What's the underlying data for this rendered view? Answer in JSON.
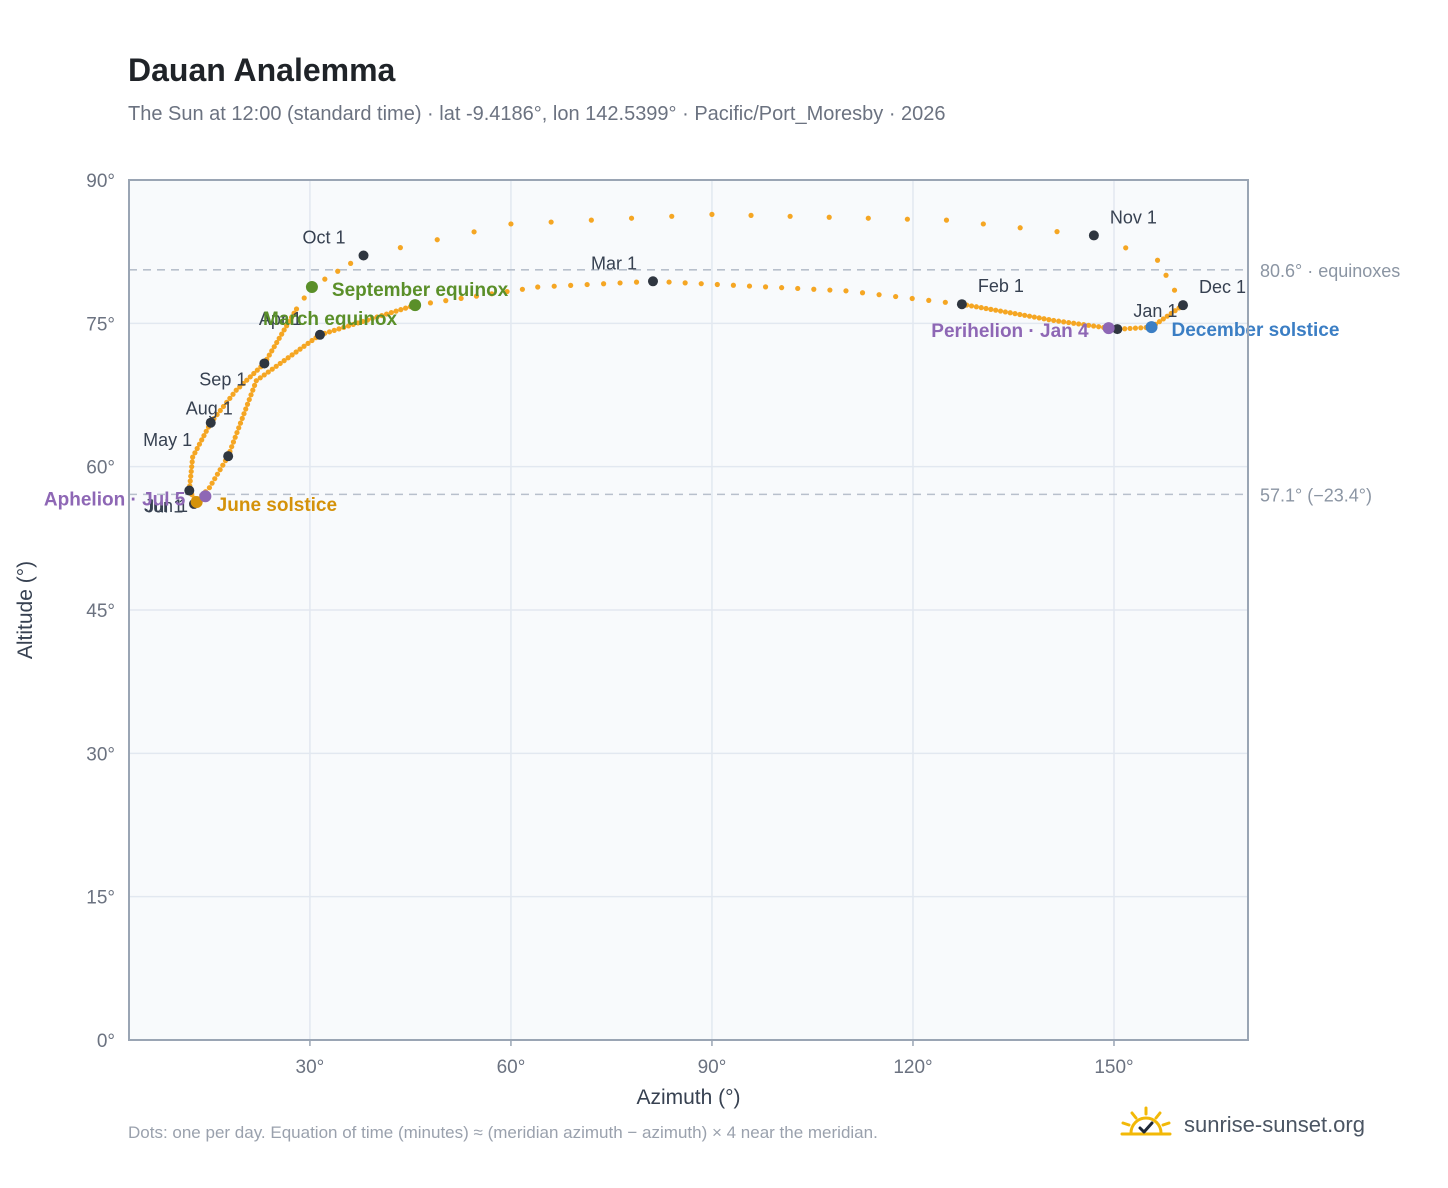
{
  "title": "Dauan Analemma",
  "subtitle": "The Sun at 12:00 (standard time) · lat -9.4186°, lon 142.5399° · Pacific/Port_Moresby · 2026",
  "footer_note": "Dots: one per day. Equation of time (minutes) ≈ (meridian azimuth − azimuth) × 4 near the meridian.",
  "brand": {
    "name": "sunrise-sunset.org",
    "icon": "sun-check-icon"
  },
  "colors": {
    "curve": "#f5a623",
    "month_marker": "#2f3640",
    "equinox": "#5a8f29",
    "june_solstice": "#d4920a",
    "december_solstice": "#3b7ec4",
    "aphelion_perihelion": "#8e67b5",
    "reference_line": "#b8c0cc",
    "plot_bg": "#f8fafc",
    "grid": "#e2e8f0",
    "axis": "#9aa5b4"
  },
  "chart_data": {
    "type": "scatter",
    "xlabel": "Azimuth (°)",
    "ylabel": "Altitude (°)",
    "xlim": [
      3,
      170
    ],
    "ylim": [
      0,
      90
    ],
    "x_ticks": [
      30,
      60,
      90,
      120,
      150
    ],
    "x_tick_labels": [
      "30°",
      "60°",
      "90°",
      "120°",
      "150°"
    ],
    "y_ticks": [
      0,
      15,
      30,
      45,
      60,
      75,
      90
    ],
    "y_tick_labels": [
      "0°",
      "15°",
      "30°",
      "45°",
      "60°",
      "75°",
      "90°"
    ],
    "grid": true,
    "reference_lines": [
      {
        "y": 80.6,
        "label": "80.6° · equinoxes"
      },
      {
        "y": 57.1,
        "label": "57.1° (−23.4°)"
      }
    ],
    "month_markers": [
      {
        "label": "Jan 1",
        "x": 150.5,
        "y": 74.4
      },
      {
        "label": "Feb 1",
        "x": 127.3,
        "y": 77.0
      },
      {
        "label": "Mar 1",
        "x": 81.2,
        "y": 79.4
      },
      {
        "label": "Apr 1",
        "x": 31.5,
        "y": 73.8
      },
      {
        "label": "May 1",
        "x": 17.8,
        "y": 61.1
      },
      {
        "label": "Jun 1",
        "x": 12.7,
        "y": 56.1
      },
      {
        "label": "Jul 1",
        "x": 12.0,
        "y": 57.5
      },
      {
        "label": "Aug 1",
        "x": 15.2,
        "y": 64.6
      },
      {
        "label": "Sep 1",
        "x": 23.2,
        "y": 70.8
      },
      {
        "label": "Oct 1",
        "x": 38.0,
        "y": 82.1
      },
      {
        "label": "Nov 1",
        "x": 147.0,
        "y": 84.2
      },
      {
        "label": "Dec 1",
        "x": 160.3,
        "y": 76.9
      }
    ],
    "special_points": [
      {
        "label": "March equinox",
        "x": 45.7,
        "y": 76.9,
        "color_key": "equinox"
      },
      {
        "label": "September equinox",
        "x": 30.3,
        "y": 78.8,
        "color_key": "equinox"
      },
      {
        "label": "June solstice",
        "x": 13.1,
        "y": 56.3,
        "color_key": "june_solstice"
      },
      {
        "label": "December solstice",
        "x": 155.6,
        "y": 74.6,
        "color_key": "december_solstice"
      },
      {
        "label": "Aphelion · Jul 5",
        "x": 14.4,
        "y": 56.9,
        "color_key": "aphelion_perihelion"
      },
      {
        "label": "Perihelion · Jan 4",
        "x": 149.2,
        "y": 74.5,
        "color_key": "aphelion_perihelion"
      }
    ],
    "curve_path": [
      {
        "doy": 1,
        "x": 150.5,
        "y": 74.4
      },
      {
        "doy": 4,
        "x": 149.2,
        "y": 74.5
      },
      {
        "doy": 15,
        "x": 141.0,
        "y": 75.3
      },
      {
        "doy": 32,
        "x": 127.3,
        "y": 77.0
      },
      {
        "doy": 45,
        "x": 110.0,
        "y": 78.4
      },
      {
        "doy": 60,
        "x": 81.2,
        "y": 79.4
      },
      {
        "doy": 70,
        "x": 64.0,
        "y": 78.8
      },
      {
        "doy": 79,
        "x": 45.7,
        "y": 76.9
      },
      {
        "doy": 91,
        "x": 31.5,
        "y": 73.8
      },
      {
        "doy": 105,
        "x": 22.0,
        "y": 69.0
      },
      {
        "doy": 121,
        "x": 17.8,
        "y": 61.1
      },
      {
        "doy": 135,
        "x": 15.0,
        "y": 57.8
      },
      {
        "doy": 152,
        "x": 12.7,
        "y": 56.1
      },
      {
        "doy": 172,
        "x": 13.1,
        "y": 56.3
      },
      {
        "doy": 182,
        "x": 12.0,
        "y": 57.5
      },
      {
        "doy": 200,
        "x": 12.5,
        "y": 61.0
      },
      {
        "doy": 213,
        "x": 15.2,
        "y": 64.6
      },
      {
        "doy": 230,
        "x": 19.0,
        "y": 68.0
      },
      {
        "doy": 244,
        "x": 23.2,
        "y": 70.8
      },
      {
        "doy": 258,
        "x": 28.0,
        "y": 76.5
      },
      {
        "doy": 266,
        "x": 30.3,
        "y": 78.8
      },
      {
        "doy": 274,
        "x": 38.0,
        "y": 82.1
      },
      {
        "doy": 290,
        "x": 60.0,
        "y": 85.4
      },
      {
        "doy": 304,
        "x": 90.0,
        "y": 86.4
      },
      {
        "doy": 318,
        "x": 125.0,
        "y": 85.8
      },
      {
        "doy": 305,
        "x": 147.0,
        "y": 84.2
      },
      {
        "doy": 325,
        "x": 156.5,
        "y": 81.6
      },
      {
        "doy": 335,
        "x": 160.3,
        "y": 76.9
      },
      {
        "doy": 355,
        "x": 155.6,
        "y": 74.6
      },
      {
        "doy": 365,
        "x": 150.8,
        "y": 74.4
      }
    ]
  }
}
